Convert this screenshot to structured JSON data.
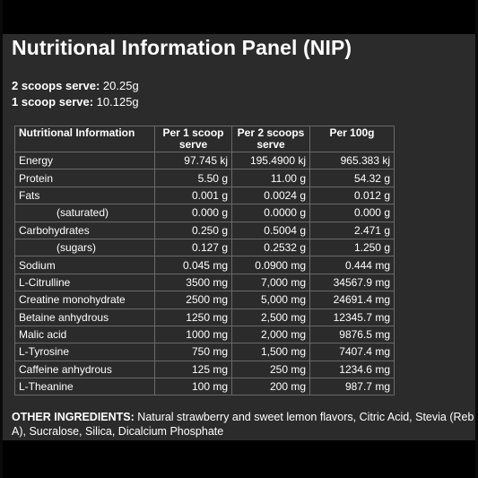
{
  "title": "Nutritional Information Panel (NIP)",
  "serves": [
    {
      "label": "2 scoops serve:",
      "value": "20.25g"
    },
    {
      "label": "1 scoop serve:",
      "value": "10.125g"
    }
  ],
  "table": {
    "headers": [
      "Nutritional Information",
      "Per 1 scoop serve",
      "Per 2 scoops serve",
      "Per 100g"
    ],
    "rows": [
      {
        "name": "Energy",
        "sub": false,
        "values": [
          "97.745 kj",
          "195.4900 kj",
          "965.383 kj"
        ]
      },
      {
        "name": "Protein",
        "sub": false,
        "values": [
          "5.50 g",
          "11.00 g",
          "54.32 g"
        ]
      },
      {
        "name": "Fats",
        "sub": false,
        "values": [
          "0.001 g",
          "0.0024 g",
          "0.012 g"
        ]
      },
      {
        "name": "(saturated)",
        "sub": true,
        "values": [
          "0.000 g",
          "0.0000 g",
          "0.000 g"
        ]
      },
      {
        "name": "Carbohydrates",
        "sub": false,
        "values": [
          "0.250 g",
          "0.5004 g",
          "2.471 g"
        ]
      },
      {
        "name": "(sugars)",
        "sub": true,
        "values": [
          "0.127 g",
          "0.2532 g",
          "1.250 g"
        ]
      },
      {
        "name": "Sodium",
        "sub": false,
        "values": [
          "0.045 mg",
          "0.0900 mg",
          "0.444 mg"
        ]
      },
      {
        "name": "L-Citrulline",
        "sub": false,
        "values": [
          "3500 mg",
          "7,000 mg",
          "34567.9 mg"
        ]
      },
      {
        "name": "Creatine monohydrate",
        "sub": false,
        "values": [
          "2500 mg",
          "5,000 mg",
          "24691.4 mg"
        ]
      },
      {
        "name": "Betaine anhydrous",
        "sub": false,
        "values": [
          "1250 mg",
          "2,500 mg",
          "12345.7 mg"
        ]
      },
      {
        "name": "Malic acid",
        "sub": false,
        "values": [
          "1000 mg",
          "2,000 mg",
          "9876.5 mg"
        ]
      },
      {
        "name": "L-Tyrosine",
        "sub": false,
        "values": [
          "750 mg",
          "1,500 mg",
          "7407.4 mg"
        ]
      },
      {
        "name": "Caffeine anhydrous",
        "sub": false,
        "values": [
          "125 mg",
          "250 mg",
          "1234.6 mg"
        ]
      },
      {
        "name": "L-Theanine",
        "sub": false,
        "values": [
          "100 mg",
          "200 mg",
          "987.7 mg"
        ]
      }
    ]
  },
  "other_ingredients": {
    "label": "OTHER INGREDIENTS:",
    "text": " Natural strawberry and sweet lemon flavors, Citric Acid, Stevia (Reb A), Sucralose, Silica, Dicalcium Phosphate"
  },
  "colors": {
    "panel_background": "#2b2b2b",
    "frame": "#000000",
    "text": "#ffffff",
    "table_border": "#6a6a6a"
  }
}
